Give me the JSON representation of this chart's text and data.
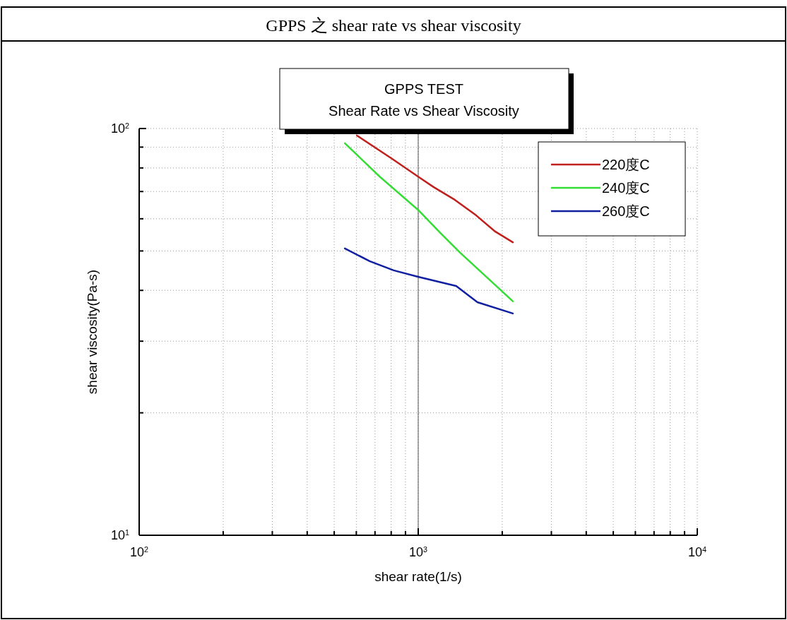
{
  "chart_data": {
    "type": "line",
    "title": "GPPS 之 shear rate vs shear viscosity",
    "subtitle": "GPPS TEST",
    "annotations": [
      "Shear Rate vs Shear Viscosity"
    ],
    "xlabel": "shear rate(1/s)",
    "ylabel": "shear viscosity(Pa-s)",
    "log": "xy",
    "grid": true,
    "legend": "top right",
    "marker": "none",
    "line_style": "solid",
    "ref_lines": [
      {
        "axis": "x",
        "value": 1000,
        "color": "#555555",
        "line_style": "solid"
      }
    ],
    "xlim": [
      100,
      10000
    ],
    "ylim": [
      10,
      100
    ],
    "xticks": [
      {
        "value": 100,
        "label": "10$^{2}$"
      },
      {
        "value": 200,
        "label": null
      },
      {
        "value": 300,
        "label": null
      },
      {
        "value": 400,
        "label": null
      },
      {
        "value": 500,
        "label": null
      },
      {
        "value": 600,
        "label": null
      },
      {
        "value": 700,
        "label": null
      },
      {
        "value": 800,
        "label": null
      },
      {
        "value": 900,
        "label": null
      },
      {
        "value": 1000,
        "label": "10$^{3}$"
      },
      {
        "value": 2000,
        "label": null
      },
      {
        "value": 3000,
        "label": null
      },
      {
        "value": 4000,
        "label": null
      },
      {
        "value": 5000,
        "label": null
      },
      {
        "value": 6000,
        "label": null
      },
      {
        "value": 7000,
        "label": null
      },
      {
        "value": 8000,
        "label": null
      },
      {
        "value": 9000,
        "label": null
      },
      {
        "value": 10000,
        "label": "10$^{4}$"
      }
    ],
    "yticks": [
      {
        "value": 10,
        "label": "10$^{1}$"
      },
      {
        "value": 20,
        "label": null
      },
      {
        "value": 30,
        "label": null
      },
      {
        "value": 40,
        "label": null
      },
      {
        "value": 50,
        "label": null
      },
      {
        "value": 60,
        "label": null
      },
      {
        "value": 70,
        "label": null
      },
      {
        "value": 80,
        "label": null
      },
      {
        "value": 90,
        "label": null
      },
      {
        "value": 100,
        "label": "10$^{2}$"
      }
    ],
    "series": [
      {
        "name": "220度C",
        "color": "#c0201c",
        "x": [
          603,
          807,
          998,
          1135,
          1352,
          1611,
          1888,
          2183
        ],
        "values": [
          96.1,
          84.2,
          76.2,
          71.8,
          66.8,
          61.2,
          55.8,
          52.5
        ]
      },
      {
        "name": "240度C",
        "color": "#33dd33",
        "x": [
          546,
          727,
          999,
          1202,
          1409,
          2183
        ],
        "values": [
          92.0,
          76.2,
          63.1,
          55.3,
          49.6,
          37.6
        ]
      },
      {
        "name": "260度C",
        "color": "#1020a0",
        "x": [
          546,
          670,
          817,
          999,
          1368,
          1630,
          2183
        ],
        "values": [
          50.7,
          47.2,
          44.8,
          43.2,
          41.0,
          37.4,
          35.1
        ]
      }
    ]
  }
}
